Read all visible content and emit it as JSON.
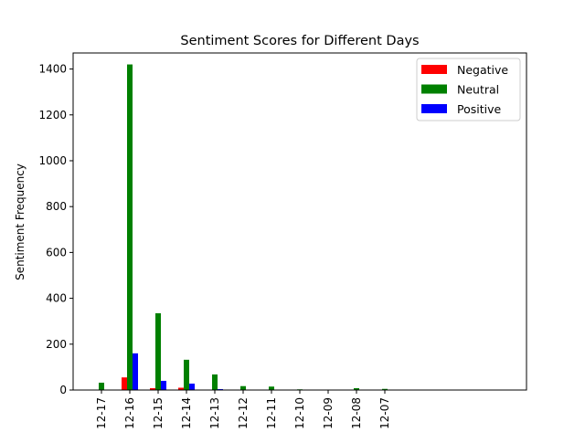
{
  "chart_data": {
    "type": "bar",
    "title": "Sentiment Scores for Different Days",
    "xlabel": "",
    "ylabel": "Sentiment Frequency",
    "categories": [
      "12-17",
      "12-16",
      "12-15",
      "12-14",
      "12-13",
      "12-12",
      "12-11",
      "12-10",
      "12-09",
      "12-08",
      "12-07"
    ],
    "series": [
      {
        "name": "Negative",
        "color": "#ff0000",
        "values": [
          0,
          55,
          8,
          10,
          0,
          0,
          0,
          0,
          0,
          0,
          0
        ]
      },
      {
        "name": "Neutral",
        "color": "#008000",
        "values": [
          32,
          1420,
          335,
          132,
          68,
          17,
          15,
          3,
          2,
          8,
          5
        ]
      },
      {
        "name": "Positive",
        "color": "#0000ff",
        "values": [
          2,
          160,
          40,
          28,
          4,
          2,
          1,
          0,
          0,
          0,
          0
        ]
      }
    ],
    "yticks": [
      0,
      200,
      400,
      600,
      800,
      1000,
      1200,
      1400
    ],
    "ylim": [
      0,
      1470
    ],
    "legend_position": "top-right",
    "grid": false
  }
}
